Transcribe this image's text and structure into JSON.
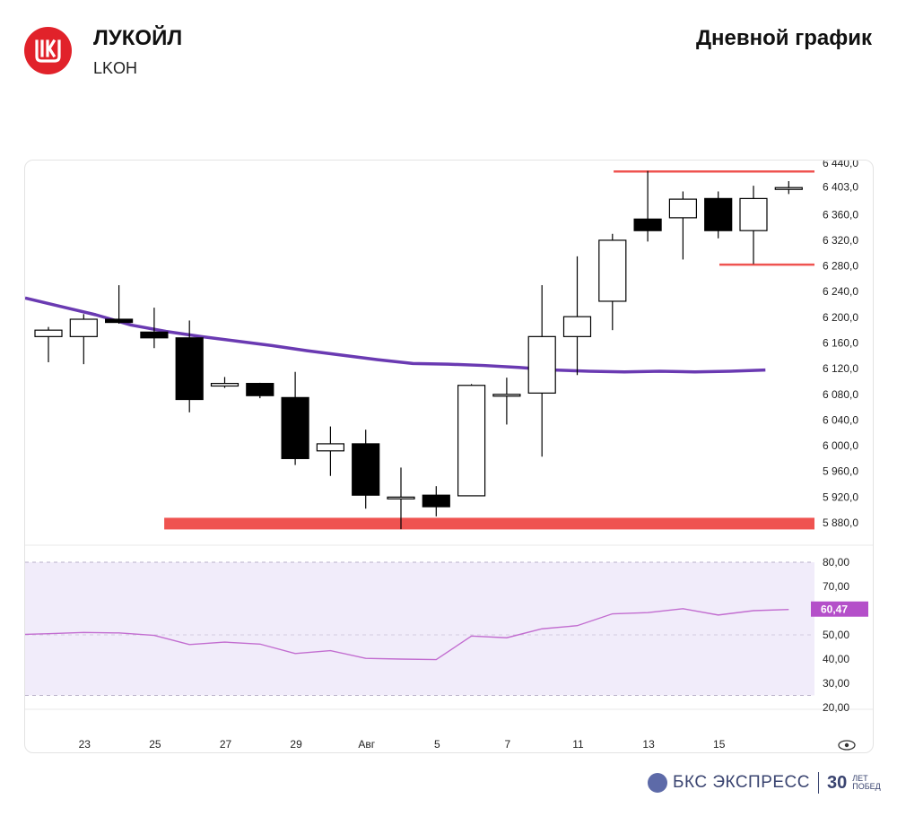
{
  "header": {
    "company": "ЛУКОЙЛ",
    "ticker": "LKOH",
    "timeframe": "Дневной график",
    "logo_icon": "lukoil-logo-icon"
  },
  "footer": {
    "brand": "БКС ЭКСПРЕСС",
    "anniversary_number": "30",
    "anniversary_line1": "ЛЕТ",
    "anniversary_line2": "ПОБЕД"
  },
  "colors": {
    "brand_red": "#e1222a",
    "candle_up_fill": "#ffffff",
    "candle_down_fill": "#000000",
    "moving_average": "#6a3ab2",
    "level_line": "#ef5350",
    "rsi_line": "#c26dd0",
    "rsi_band": "#f1ecfa",
    "rsi_label_bg": "#b44fc9"
  },
  "chart_data": [
    {
      "type": "candlestick",
      "title": "",
      "x_ticks": [
        "23",
        "25",
        "27",
        "29",
        "Авг",
        "5",
        "7",
        "11",
        "13",
        "15"
      ],
      "y_ticks": [
        "6 440,0",
        "6 403,0",
        "6 360,0",
        "6 320,0",
        "6 280,0",
        "6 240,0",
        "6 200,0",
        "6 160,0",
        "6 120,0",
        "6 080,0",
        "6 040,0",
        "6 000,0",
        "5 960,0",
        "5 920,0",
        "5 880,0"
      ],
      "ylim": [
        5870,
        6440
      ],
      "candles": [
        {
          "open": 6170,
          "high": 6185,
          "low": 6130,
          "close": 6180
        },
        {
          "open": 6170,
          "high": 6205,
          "low": 6127,
          "close": 6197
        },
        {
          "open": 6197,
          "high": 6250,
          "low": 6190,
          "close": 6192
        },
        {
          "open": 6177,
          "high": 6215,
          "low": 6152,
          "close": 6168
        },
        {
          "open": 6168,
          "high": 6195,
          "low": 6052,
          "close": 6072
        },
        {
          "open": 6093,
          "high": 6107,
          "low": 6090,
          "close": 6097
        },
        {
          "open": 6097,
          "high": 6098,
          "low": 6074,
          "close": 6078
        },
        {
          "open": 6075,
          "high": 6115,
          "low": 5970,
          "close": 5980
        },
        {
          "open": 5992,
          "high": 6030,
          "low": 5953,
          "close": 6003
        },
        {
          "open": 6003,
          "high": 6025,
          "low": 5902,
          "close": 5923
        },
        {
          "open": 5920,
          "high": 5966,
          "low": 5870,
          "close": 5920
        },
        {
          "open": 5923,
          "high": 5937,
          "low": 5890,
          "close": 5905
        },
        {
          "open": 5922,
          "high": 6096,
          "low": 5922,
          "close": 6094
        },
        {
          "open": 6080,
          "high": 6106,
          "low": 6033,
          "close": 6080
        },
        {
          "open": 6082,
          "high": 6250,
          "low": 5983,
          "close": 6170
        },
        {
          "open": 6170,
          "high": 6295,
          "low": 6110,
          "close": 6201
        },
        {
          "open": 6225,
          "high": 6330,
          "low": 6180,
          "close": 6320
        },
        {
          "open": 6353,
          "high": 6428,
          "low": 6318,
          "close": 6335
        },
        {
          "open": 6355,
          "high": 6396,
          "low": 6290,
          "close": 6384
        },
        {
          "open": 6385,
          "high": 6396,
          "low": 6323,
          "close": 6335
        },
        {
          "open": 6335,
          "high": 6405,
          "low": 6283,
          "close": 6385
        },
        {
          "open": 6400,
          "high": 6412,
          "low": 6392,
          "close": 6402
        }
      ],
      "moving_average": [
        6230,
        6217,
        6204,
        6188,
        6178,
        6170,
        6163,
        6156,
        6148,
        6141,
        6134,
        6128,
        6127,
        6125,
        6122,
        6118,
        6116,
        6115,
        6116,
        6115,
        6116,
        6118
      ],
      "levels": [
        {
          "type": "resistance",
          "value": 6427,
          "from_candle": 17
        },
        {
          "type": "resistance",
          "value": 6282,
          "from_candle": 20
        },
        {
          "type": "support",
          "value": 5878,
          "from_candle": 7
        }
      ]
    },
    {
      "type": "line",
      "title": "",
      "y_ticks": [
        "80,00",
        "70,00",
        "60,00",
        "50,00",
        "40,00",
        "30,00",
        "20,00"
      ],
      "ylim": [
        20,
        80
      ],
      "band": [
        25,
        80
      ],
      "midline": 50,
      "values": [
        50.5,
        51,
        50.8,
        49.8,
        46,
        47,
        46.2,
        42.3,
        43.5,
        40.3,
        40,
        39.8,
        49.5,
        48.8,
        52.5,
        53.8,
        58.7,
        59.2,
        60.8,
        58.2,
        60,
        60.47
      ],
      "last_value_label": "60,47"
    }
  ]
}
